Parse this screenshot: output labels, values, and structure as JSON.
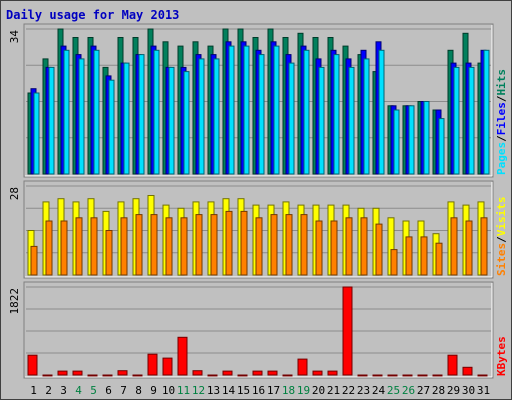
{
  "chart_data": {
    "type": "bar",
    "title": "Daily usage for May 2013",
    "x": [
      "1",
      "2",
      "3",
      "4",
      "5",
      "6",
      "7",
      "8",
      "9",
      "10",
      "11",
      "12",
      "13",
      "14",
      "15",
      "16",
      "17",
      "18",
      "19",
      "20",
      "21",
      "22",
      "23",
      "24",
      "25",
      "26",
      "27",
      "28",
      "29",
      "30",
      "31"
    ],
    "weekend_days": [
      "4",
      "5",
      "11",
      "12",
      "18",
      "19",
      "25",
      "26"
    ],
    "panels": [
      {
        "id": "hits",
        "max_label": "34",
        "ymax": 34,
        "legend": [
          "Pages",
          "/",
          "Files",
          "/",
          "Hits"
        ],
        "series": [
          {
            "name": "Hits",
            "color": "#00805c",
            "values": [
              19,
              27,
              34,
              32,
              32,
              25,
              32,
              32,
              34,
              31,
              30,
              31,
              30,
              34,
              34,
              32,
              34,
              32,
              33,
              32,
              32,
              30,
              28,
              24,
              16,
              16,
              17,
              15,
              29,
              33,
              26
            ]
          },
          {
            "name": "Files",
            "color": "#0000ff",
            "values": [
              20,
              25,
              30,
              28,
              30,
              23,
              26,
              28,
              30,
              25,
              25,
              28,
              28,
              31,
              31,
              29,
              31,
              28,
              30,
              27,
              29,
              27,
              29,
              31,
              16,
              16,
              17,
              15,
              26,
              26,
              29
            ]
          },
          {
            "name": "Pages",
            "color": "#00e0ff",
            "values": [
              19,
              25,
              29,
              27,
              29,
              22,
              26,
              28,
              29,
              25,
              24,
              27,
              27,
              30,
              30,
              28,
              30,
              26,
              29,
              25,
              28,
              25,
              27,
              29,
              15,
              16,
              17,
              13,
              25,
              25,
              29
            ]
          }
        ]
      },
      {
        "id": "visits",
        "max_label": "28",
        "ymax": 28,
        "legend": [
          "Sites",
          "/",
          "Visits"
        ],
        "series": [
          {
            "name": "Visits",
            "color": "#ffff00",
            "values": [
              14,
              23,
              24,
              23,
              24,
              20,
              23,
              24,
              25,
              22,
              21,
              23,
              23,
              24,
              24,
              22,
              22,
              23,
              22,
              22,
              22,
              22,
              21,
              21,
              18,
              17,
              17,
              13,
              23,
              22,
              23
            ]
          },
          {
            "name": "Sites",
            "color": "#ff8000",
            "values": [
              9,
              17,
              17,
              18,
              18,
              14,
              18,
              19,
              19,
              18,
              18,
              19,
              19,
              20,
              20,
              18,
              19,
              19,
              19,
              17,
              17,
              18,
              18,
              16,
              8,
              12,
              12,
              10,
              18,
              17,
              18
            ]
          }
        ]
      },
      {
        "id": "kbytes",
        "max_label": "1822",
        "ymax": 1822,
        "legend": [
          "KBytes"
        ],
        "series": [
          {
            "name": "KBytes",
            "color": "#ff0000",
            "values": [
              410,
              0,
              80,
              80,
              0,
              0,
              90,
              0,
              430,
              350,
              780,
              90,
              0,
              80,
              0,
              80,
              80,
              0,
              330,
              80,
              80,
              1822,
              0,
              0,
              0,
              0,
              0,
              0,
              410,
              160,
              0
            ]
          }
        ]
      }
    ]
  }
}
